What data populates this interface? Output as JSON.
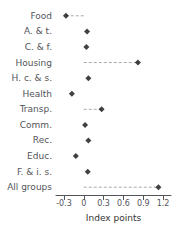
{
  "chart_data": {
    "type": "scatter",
    "orientation": "horizontal",
    "xlabel": "Index points",
    "categories": [
      "Food",
      "A. & t.",
      "C. & f.",
      "Housing",
      "H. c. & s.",
      "Health",
      "Transp.",
      "Comm.",
      "Rec.",
      "Educ.",
      "F. & i. s.",
      "All groups"
    ],
    "series": [
      {
        "type": "line",
        "line_style": "dashed",
        "color": "#aaaaaa",
        "values": [
          -0.27,
          null,
          null,
          0.82,
          null,
          null,
          0.27,
          null,
          null,
          null,
          null,
          1.13
        ]
      },
      {
        "type": "scatter",
        "marker": "diamond",
        "color": "#111111",
        "values": [
          -0.27,
          0.05,
          0.04,
          0.82,
          0.07,
          -0.18,
          0.27,
          0.02,
          0.07,
          -0.12,
          0.06,
          1.13
        ]
      }
    ],
    "xlim": [
      -0.42,
      1.32
    ],
    "xticks": [
      -0.3,
      0.0,
      0.3,
      0.6,
      0.9,
      1.2
    ],
    "grid": false
  }
}
